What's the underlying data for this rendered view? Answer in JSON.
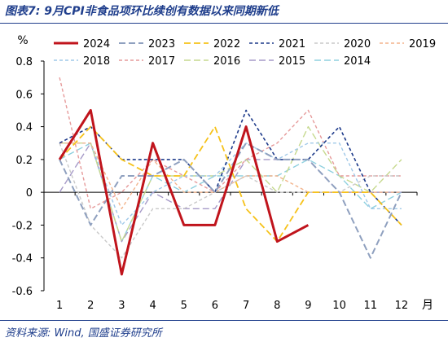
{
  "figure": {
    "title": "图表7: 9月CPI非食品项环比续创有数据以来同期新低",
    "source": "资料来源: Wind, 国盛证券研究所"
  },
  "chart_data": {
    "type": "line",
    "ylabel": "%",
    "xlabel": "月",
    "x": [
      1,
      2,
      3,
      4,
      5,
      6,
      7,
      8,
      9,
      10,
      11,
      12
    ],
    "xticks": [
      "1",
      "2",
      "3",
      "4",
      "5",
      "6",
      "7",
      "8",
      "9",
      "10",
      "11",
      "12"
    ],
    "ylim": [
      -0.6,
      0.8
    ],
    "yticks": [
      "-0.6",
      "-0.4",
      "-0.2",
      "0",
      "0.2",
      "0.4",
      "0.6",
      "0.8"
    ],
    "grid": false,
    "legend_placement": "top",
    "series": [
      {
        "name": "2024",
        "color": "#c0141c",
        "dash": "solid",
        "width": 3,
        "values": [
          0.2,
          0.5,
          -0.5,
          0.3,
          -0.2,
          -0.2,
          0.4,
          -0.3,
          -0.2,
          null,
          null,
          null
        ]
      },
      {
        "name": "2023",
        "color": "#8fa0bf",
        "dash": "long",
        "width": 2,
        "values": [
          0.2,
          -0.2,
          0.1,
          0.1,
          0.2,
          0.0,
          0.3,
          0.2,
          0.2,
          0.0,
          -0.4,
          0.0
        ]
      },
      {
        "name": "2022",
        "color": "#f6c21a",
        "dash": "long",
        "width": 1.8,
        "values": [
          0.2,
          0.4,
          0.2,
          0.1,
          0.1,
          0.4,
          -0.1,
          -0.3,
          0.0,
          0.0,
          0.0,
          -0.2
        ]
      },
      {
        "name": "2021",
        "color": "#1d3a8a",
        "dash": "short",
        "width": 1.6,
        "values": [
          0.3,
          0.4,
          0.2,
          0.2,
          0.2,
          0.0,
          0.5,
          0.2,
          0.2,
          0.4,
          0.0,
          -0.2
        ]
      },
      {
        "name": "2020",
        "color": "#c9c9c9",
        "dash": "short",
        "width": 1.4,
        "values": [
          0.3,
          -0.2,
          -0.4,
          -0.1,
          -0.1,
          0.0,
          0.1,
          0.0,
          0.0,
          0.0,
          0.1,
          0.1
        ]
      },
      {
        "name": "2019",
        "color": "#f3b48c",
        "dash": "short",
        "width": 1.4,
        "values": [
          0.3,
          0.3,
          -0.1,
          0.2,
          0.0,
          0.0,
          0.1,
          0.1,
          0.0,
          0.0,
          0.0,
          0.0
        ]
      },
      {
        "name": "2018",
        "color": "#9fc8e8",
        "dash": "short",
        "width": 1.4,
        "values": [
          0.3,
          0.3,
          -0.2,
          0.0,
          0.1,
          0.1,
          0.3,
          0.2,
          0.3,
          0.3,
          -0.1,
          -0.1
        ]
      },
      {
        "name": "2017",
        "color": "#e69a9a",
        "dash": "short",
        "width": 1.4,
        "values": [
          0.7,
          -0.1,
          0.0,
          0.2,
          0.1,
          0.0,
          0.2,
          0.3,
          0.5,
          0.1,
          0.1,
          0.1
        ]
      },
      {
        "name": "2016",
        "color": "#c6d98e",
        "dash": "long",
        "width": 1.4,
        "values": [
          0.3,
          0.3,
          -0.3,
          0.1,
          0.1,
          0.1,
          0.2,
          0.0,
          0.4,
          0.1,
          0.0,
          0.2
        ]
      },
      {
        "name": "2015",
        "color": "#a69ac8",
        "dash": "long",
        "width": 1.4,
        "values": [
          0.0,
          0.3,
          -0.3,
          0.0,
          -0.1,
          -0.1,
          0.2,
          0.2,
          0.2,
          0.0,
          0.0,
          0.0
        ]
      },
      {
        "name": "2014",
        "color": "#8fd0df",
        "dash": "long",
        "width": 1.4,
        "values": [
          0.2,
          0.3,
          -0.3,
          0.1,
          0.0,
          0.1,
          0.1,
          0.1,
          0.2,
          0.1,
          -0.1,
          0.0
        ]
      }
    ]
  }
}
